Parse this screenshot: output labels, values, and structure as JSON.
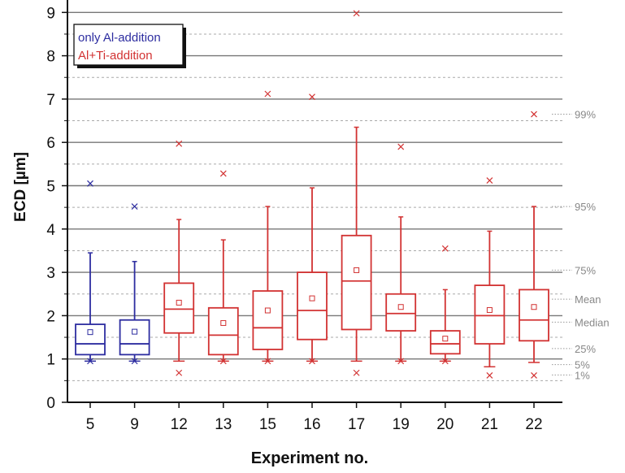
{
  "chart_data": {
    "type": "box",
    "xlabel": "Experiment no.",
    "ylabel": "ECD [µm]",
    "ylim": [
      0,
      9
    ],
    "yticks": [
      "0",
      "1",
      "2",
      "3",
      "4",
      "5",
      "6",
      "7",
      "8",
      "9"
    ],
    "grid": "major solid, minor dashed",
    "legend": {
      "placement": "top-left",
      "entries": [
        {
          "label": "only Al-addition",
          "color": "#2d2da0"
        },
        {
          "label": "Al+Ti-addition",
          "color": "#d23232"
        }
      ]
    },
    "percentile_labels": {
      "p99": "99%",
      "p95": "95%",
      "p75": "75%",
      "mean": "Mean",
      "median": "Median",
      "p25": "25%",
      "p5": "5%",
      "p1": "1%"
    },
    "experiments": [
      {
        "label": "5",
        "group": "only Al-addition",
        "p1": 0.95,
        "p5": 0.95,
        "p25": 1.1,
        "median": 1.35,
        "mean": 1.62,
        "p75": 1.8,
        "p95": 3.45,
        "p99": 5.05
      },
      {
        "label": "9",
        "group": "only Al-addition",
        "p1": 0.95,
        "p5": 0.95,
        "p25": 1.1,
        "median": 1.35,
        "mean": 1.63,
        "p75": 1.9,
        "p95": 3.25,
        "p99": 4.52
      },
      {
        "label": "12",
        "group": "Al+Ti-addition",
        "p1": 0.68,
        "p5": 0.95,
        "p25": 1.6,
        "median": 2.15,
        "mean": 2.3,
        "p75": 2.75,
        "p95": 4.22,
        "p99": 5.97
      },
      {
        "label": "13",
        "group": "Al+Ti-addition",
        "p1": 0.95,
        "p5": 0.95,
        "p25": 1.1,
        "median": 1.55,
        "mean": 1.83,
        "p75": 2.18,
        "p95": 3.75,
        "p99": 5.28
      },
      {
        "label": "15",
        "group": "Al+Ti-addition",
        "p1": 0.95,
        "p5": 0.95,
        "p25": 1.22,
        "median": 1.72,
        "mean": 2.12,
        "p75": 2.57,
        "p95": 4.52,
        "p99": 7.12
      },
      {
        "label": "16",
        "group": "Al+Ti-addition",
        "p1": 0.95,
        "p5": 0.95,
        "p25": 1.45,
        "median": 2.12,
        "mean": 2.4,
        "p75": 3.0,
        "p95": 4.95,
        "p99": 7.05
      },
      {
        "label": "17",
        "group": "Al+Ti-addition",
        "p1": 0.68,
        "p5": 0.95,
        "p25": 1.68,
        "median": 2.8,
        "mean": 3.05,
        "p75": 3.85,
        "p95": 6.35,
        "p99": 8.98
      },
      {
        "label": "19",
        "group": "Al+Ti-addition",
        "p1": 0.95,
        "p5": 0.95,
        "p25": 1.65,
        "median": 2.05,
        "mean": 2.2,
        "p75": 2.5,
        "p95": 4.28,
        "p99": 5.9
      },
      {
        "label": "20",
        "group": "Al+Ti-addition",
        "p1": 0.95,
        "p5": 0.95,
        "p25": 1.12,
        "median": 1.35,
        "mean": 1.47,
        "p75": 1.65,
        "p95": 2.6,
        "p99": 3.55
      },
      {
        "label": "21",
        "group": "Al+Ti-addition",
        "p1": 0.62,
        "p5": 0.82,
        "p25": 1.35,
        "median": 2.0,
        "mean": 2.13,
        "p75": 2.7,
        "p95": 3.95,
        "p99": 5.12
      },
      {
        "label": "22",
        "group": "Al+Ti-addition",
        "p1": 0.62,
        "p5": 0.92,
        "p25": 1.42,
        "median": 1.9,
        "mean": 2.2,
        "p75": 2.6,
        "p95": 4.52,
        "p99": 6.65
      }
    ]
  }
}
